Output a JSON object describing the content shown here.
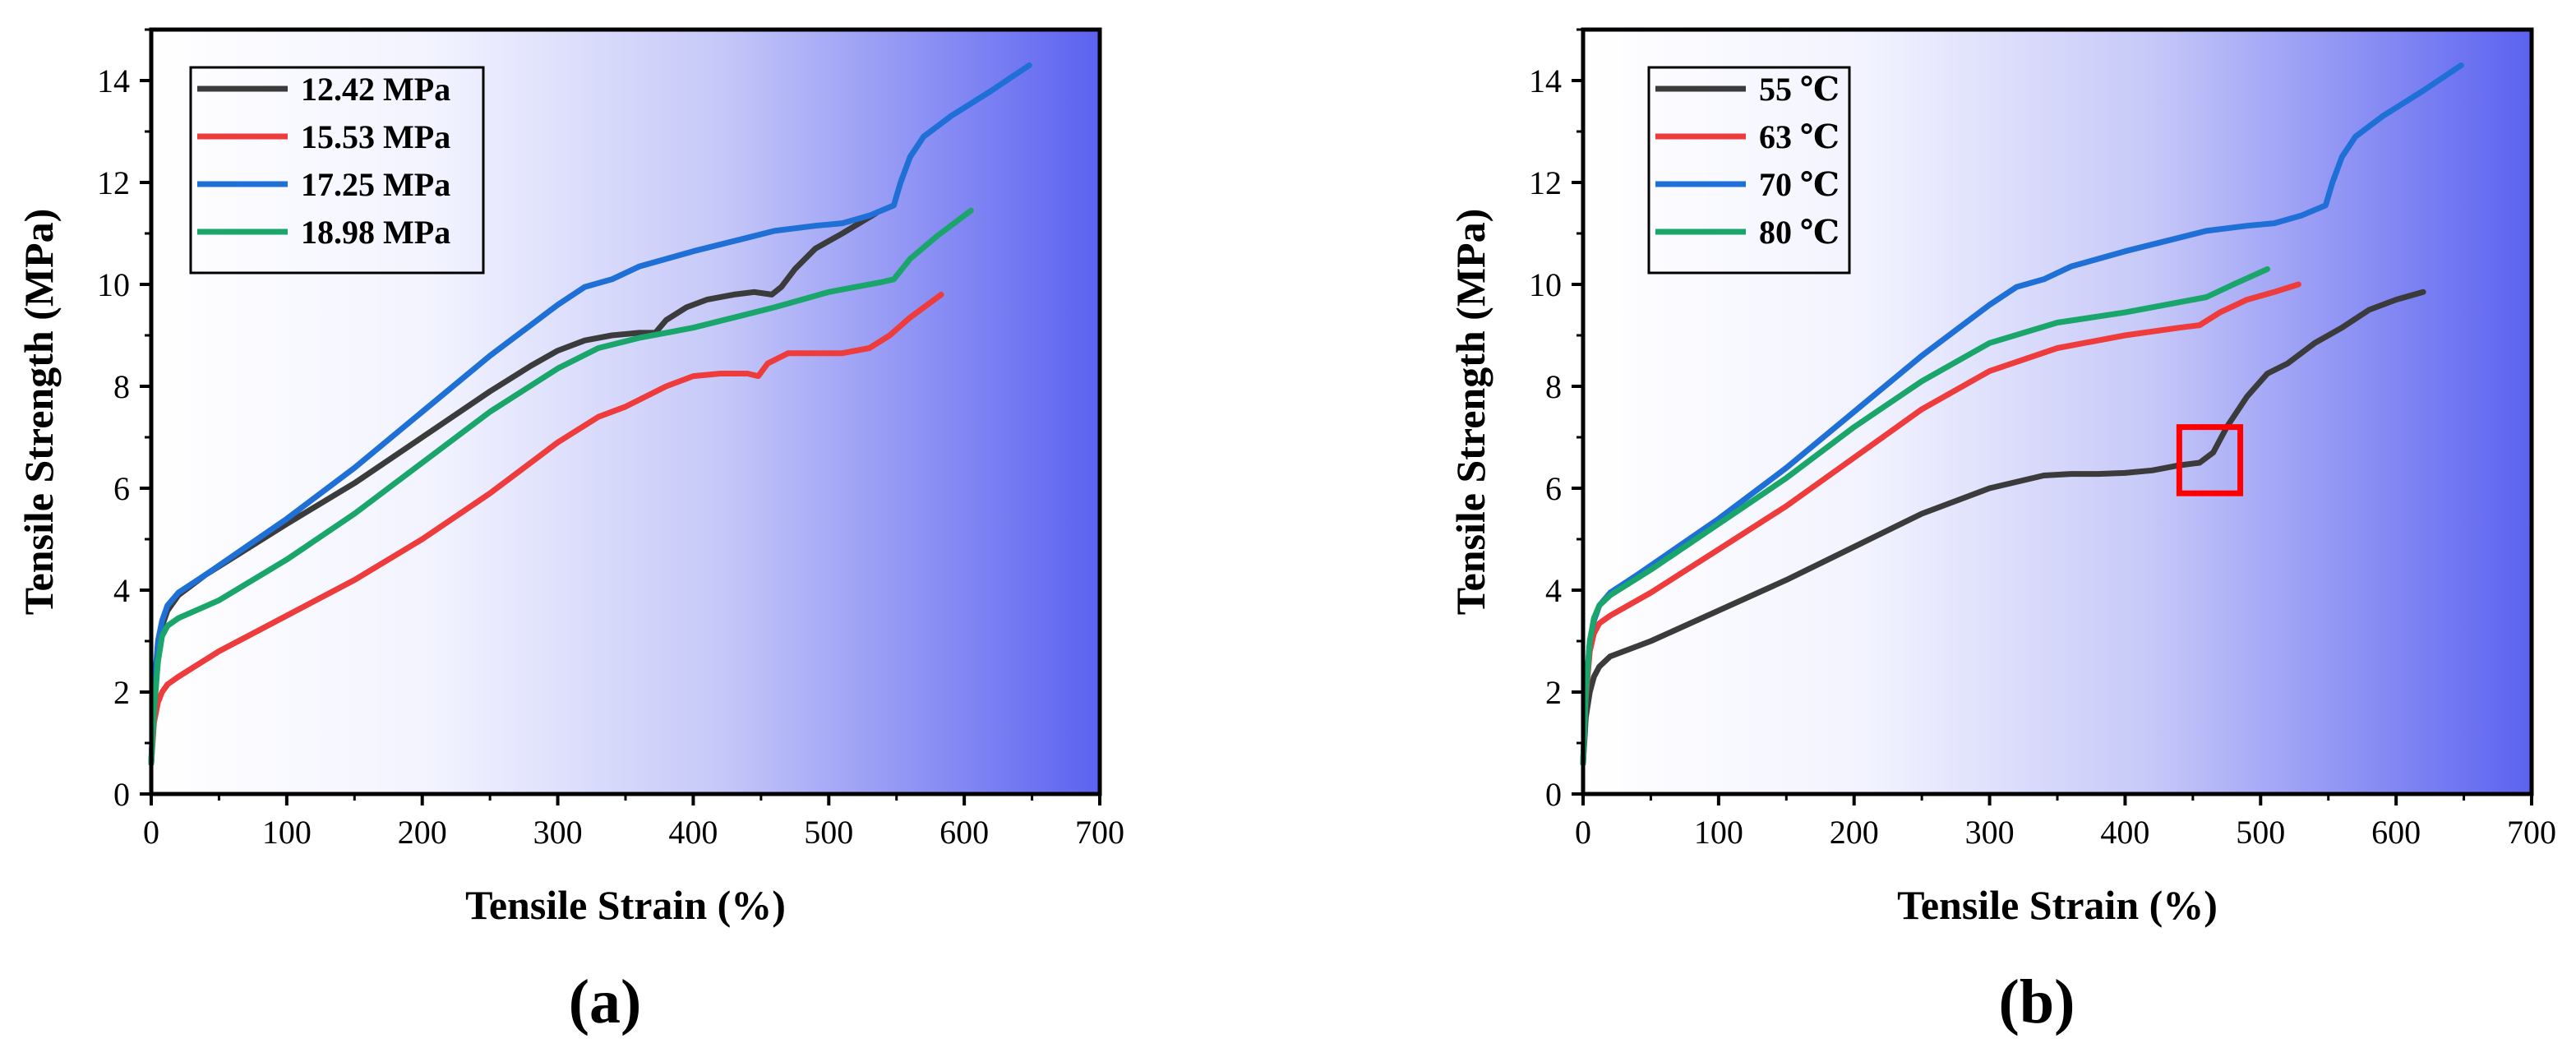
{
  "figure": {
    "colors": {
      "black": "#3b3b3b",
      "red": "#ee3b3b",
      "blue": "#1e6fd6",
      "green": "#1aa56b",
      "gradient_start": "#ffffff",
      "gradient_end": "#5b62f0",
      "highlight_box": "#ff0000"
    }
  },
  "chart_data": [
    {
      "panel_label": "(a)",
      "type": "line",
      "title": "",
      "xlabel": "Tensile Strain (%)",
      "ylabel": "Tensile Strength (MPa)",
      "xlim": [
        0,
        700
      ],
      "ylim": [
        0,
        15
      ],
      "xticks": [
        "0",
        "100",
        "200",
        "300",
        "400",
        "500",
        "600",
        "700"
      ],
      "yticks": [
        "0",
        "2",
        "4",
        "6",
        "8",
        "10",
        "12",
        "14"
      ],
      "legend_position": "top-left",
      "series": [
        {
          "name": "12.42 MPa",
          "color": "#3b3b3b",
          "x": [
            0,
            2,
            5,
            8,
            12,
            20,
            40,
            100,
            150,
            200,
            250,
            280,
            300,
            320,
            340,
            360,
            372,
            380,
            395,
            410,
            430,
            445,
            458,
            465,
            475,
            490,
            510,
            535
          ],
          "y": [
            0.6,
            1.8,
            2.8,
            3.3,
            3.6,
            3.9,
            4.3,
            5.3,
            6.1,
            7.0,
            7.9,
            8.4,
            8.7,
            8.9,
            9.0,
            9.05,
            9.05,
            9.3,
            9.55,
            9.7,
            9.8,
            9.85,
            9.8,
            9.95,
            10.3,
            10.7,
            11.0,
            11.4
          ]
        },
        {
          "name": "15.53 MPa",
          "color": "#ee3b3b",
          "x": [
            0,
            2,
            5,
            8,
            12,
            20,
            50,
            100,
            150,
            200,
            250,
            300,
            330,
            350,
            380,
            400,
            420,
            440,
            448,
            455,
            470,
            490,
            510,
            530,
            545,
            560,
            583
          ],
          "y": [
            0.6,
            1.4,
            1.8,
            2.0,
            2.15,
            2.3,
            2.8,
            3.5,
            4.2,
            5.0,
            5.9,
            6.9,
            7.4,
            7.6,
            8.0,
            8.2,
            8.25,
            8.25,
            8.2,
            8.45,
            8.65,
            8.65,
            8.65,
            8.75,
            9.0,
            9.35,
            9.8
          ]
        },
        {
          "name": "17.25 MPa",
          "color": "#1e6fd6",
          "x": [
            0,
            2,
            5,
            8,
            12,
            20,
            40,
            100,
            150,
            200,
            250,
            300,
            320,
            340,
            360,
            380,
            400,
            430,
            460,
            490,
            510,
            530,
            548,
            553,
            560,
            570,
            590,
            620,
            648
          ],
          "y": [
            0.6,
            2.0,
            3.0,
            3.4,
            3.7,
            3.95,
            4.3,
            5.4,
            6.4,
            7.5,
            8.6,
            9.6,
            9.95,
            10.1,
            10.35,
            10.5,
            10.65,
            10.85,
            11.05,
            11.15,
            11.2,
            11.35,
            11.55,
            12.0,
            12.5,
            12.9,
            13.3,
            13.8,
            14.3
          ]
        },
        {
          "name": "18.98 MPa",
          "color": "#1aa56b",
          "x": [
            0,
            2,
            5,
            8,
            12,
            20,
            50,
            100,
            150,
            200,
            250,
            300,
            330,
            360,
            380,
            400,
            430,
            460,
            480,
            500,
            520,
            540,
            548,
            560,
            580,
            605
          ],
          "y": [
            0.6,
            1.6,
            2.6,
            3.1,
            3.3,
            3.45,
            3.8,
            4.6,
            5.5,
            6.5,
            7.5,
            8.35,
            8.75,
            8.95,
            9.05,
            9.15,
            9.35,
            9.55,
            9.7,
            9.85,
            9.95,
            10.05,
            10.1,
            10.5,
            10.95,
            11.45
          ]
        }
      ]
    },
    {
      "panel_label": "(b)",
      "type": "line",
      "title": "",
      "xlabel": "Tensile Strain (%)",
      "ylabel": "Tensile Strength (MPa)",
      "xlim": [
        0,
        700
      ],
      "ylim": [
        0,
        15
      ],
      "xticks": [
        "0",
        "100",
        "200",
        "300",
        "400",
        "500",
        "600",
        "700"
      ],
      "yticks": [
        "0",
        "2",
        "4",
        "6",
        "8",
        "10",
        "12",
        "14"
      ],
      "legend_position": "top-left",
      "annotation": {
        "type": "highlight-box",
        "x_range": [
          440,
          485
        ],
        "y_range": [
          5.9,
          7.2
        ],
        "color": "#ff0000"
      },
      "series": [
        {
          "name": "55 ℃",
          "color": "#3b3b3b",
          "x": [
            0,
            2,
            5,
            8,
            12,
            20,
            50,
            100,
            150,
            200,
            250,
            300,
            340,
            360,
            380,
            400,
            420,
            440,
            455,
            465,
            475,
            490,
            505,
            520,
            540,
            560,
            580,
            600,
            620
          ],
          "y": [
            0.6,
            1.5,
            2.0,
            2.3,
            2.5,
            2.7,
            3.0,
            3.6,
            4.2,
            4.85,
            5.5,
            6.0,
            6.25,
            6.28,
            6.28,
            6.3,
            6.35,
            6.45,
            6.5,
            6.7,
            7.2,
            7.8,
            8.25,
            8.45,
            8.85,
            9.15,
            9.5,
            9.7,
            9.85
          ]
        },
        {
          "name": "63 ℃",
          "color": "#ee3b3b",
          "x": [
            0,
            2,
            5,
            8,
            12,
            20,
            50,
            100,
            150,
            200,
            250,
            300,
            350,
            400,
            440,
            455,
            470,
            490,
            510,
            528
          ],
          "y": [
            0.6,
            1.9,
            2.8,
            3.15,
            3.35,
            3.5,
            3.95,
            4.8,
            5.65,
            6.6,
            7.55,
            8.3,
            8.75,
            9.0,
            9.15,
            9.2,
            9.45,
            9.7,
            9.85,
            10.0
          ]
        },
        {
          "name": "70 ℃",
          "color": "#1e6fd6",
          "x": [
            0,
            2,
            5,
            8,
            12,
            20,
            40,
            100,
            150,
            200,
            250,
            300,
            320,
            340,
            360,
            380,
            400,
            430,
            460,
            490,
            510,
            530,
            548,
            553,
            560,
            570,
            590,
            620,
            648
          ],
          "y": [
            0.6,
            2.0,
            3.0,
            3.4,
            3.7,
            3.95,
            4.3,
            5.4,
            6.4,
            7.5,
            8.6,
            9.6,
            9.95,
            10.1,
            10.35,
            10.5,
            10.65,
            10.85,
            11.05,
            11.15,
            11.2,
            11.35,
            11.55,
            12.0,
            12.5,
            12.9,
            13.3,
            13.8,
            14.3
          ]
        },
        {
          "name": "80 ℃",
          "color": "#1aa56b",
          "x": [
            0,
            2,
            5,
            8,
            12,
            20,
            50,
            100,
            150,
            200,
            250,
            300,
            350,
            400,
            440,
            460,
            480,
            505
          ],
          "y": [
            0.6,
            2.0,
            3.0,
            3.45,
            3.7,
            3.9,
            4.4,
            5.3,
            6.2,
            7.2,
            8.1,
            8.85,
            9.25,
            9.45,
            9.65,
            9.75,
            10.0,
            10.3
          ]
        }
      ]
    }
  ]
}
